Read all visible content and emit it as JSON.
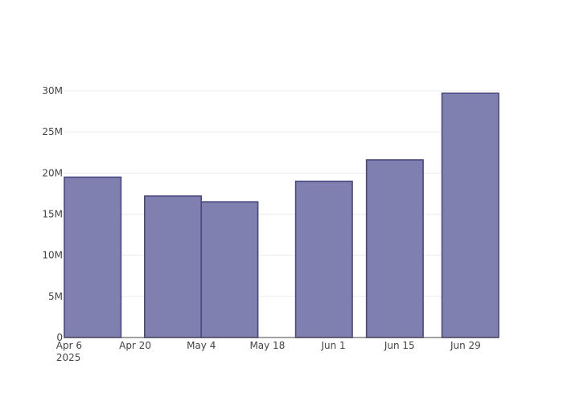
{
  "chart_data": {
    "type": "bar",
    "title": "",
    "xlabel": "",
    "ylabel": "",
    "x_tick_labels": [
      "Apr 6",
      "Apr 20",
      "May 4",
      "May 18",
      "Jun 1",
      "Jun 15",
      "Jun 29"
    ],
    "x_year_label": "2025",
    "y_tick_labels": [
      "0",
      "5M",
      "10M",
      "15M",
      "20M",
      "25M",
      "30M"
    ],
    "ylim": [
      0,
      30000000
    ],
    "grid": true,
    "bar_color": "#7F7FB0",
    "bar_edge_color": "#4A4A82",
    "bars": [
      {
        "start": "2025-04-05",
        "end": "2025-04-17",
        "value": 19500000
      },
      {
        "start": "2025-04-22",
        "end": "2025-05-04",
        "value": 17200000
      },
      {
        "start": "2025-05-04",
        "end": "2025-05-16",
        "value": 16500000
      },
      {
        "start": "2025-05-24",
        "end": "2025-06-05",
        "value": 19000000
      },
      {
        "start": "2025-06-08",
        "end": "2025-06-20",
        "value": 21600000
      },
      {
        "start": "2025-06-24",
        "end": "2025-07-06",
        "value": 29700000
      }
    ]
  }
}
